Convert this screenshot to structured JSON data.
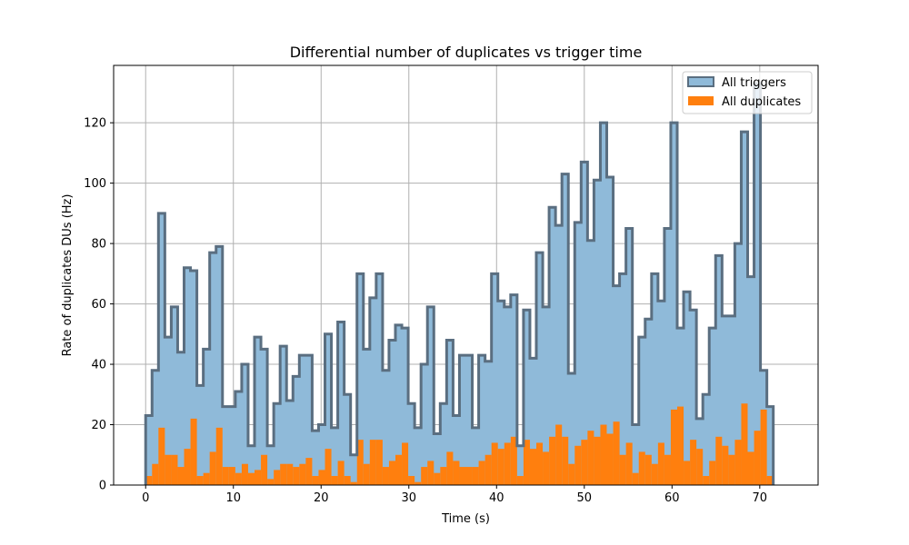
{
  "chart_data": {
    "type": "histogram",
    "title": "Differential number of duplicates vs trigger time",
    "xlabel": "Time (s)",
    "ylabel": "Rate of duplicates DUs (Hz)",
    "xlim": [
      -3.65,
      76.65
    ],
    "ylim": [
      0,
      139
    ],
    "xticks": [
      0,
      10,
      20,
      30,
      40,
      50,
      60,
      70
    ],
    "yticks": [
      0,
      20,
      40,
      60,
      80,
      100,
      120
    ],
    "grid": true,
    "legend_position": "top-right",
    "bin_start": 0,
    "bin_width": 0.73,
    "series": [
      {
        "name": "All triggers",
        "style": "stepfilled",
        "fill_color": "#8fbad9",
        "edge_color": "#5a6e80",
        "values": [
          23,
          38,
          90,
          49,
          59,
          44,
          72,
          71,
          33,
          45,
          77,
          79,
          26,
          26,
          31,
          40,
          13,
          49,
          45,
          13,
          27,
          46,
          28,
          36,
          43,
          43,
          18,
          20,
          50,
          19,
          54,
          30,
          10,
          70,
          45,
          62,
          70,
          38,
          48,
          53,
          52,
          27,
          19,
          40,
          59,
          17,
          27,
          48,
          23,
          43,
          43,
          19,
          43,
          41,
          70,
          61,
          59,
          63,
          13,
          58,
          42,
          77,
          59,
          92,
          86,
          103,
          37,
          87,
          107,
          81,
          101,
          120,
          102,
          66,
          70,
          85,
          20,
          49,
          55,
          70,
          61,
          85,
          120,
          52,
          64,
          58,
          22,
          30,
          52,
          76,
          56,
          56,
          80,
          117,
          69,
          133,
          38,
          26
        ]
      },
      {
        "name": "All duplicates",
        "style": "bar",
        "fill_color": "#ff7f0e",
        "values": [
          3,
          7,
          19,
          10,
          10,
          6,
          12,
          22,
          3,
          4,
          11,
          19,
          6,
          6,
          4,
          7,
          4,
          5,
          10,
          2,
          5,
          7,
          7,
          6,
          7,
          9,
          3,
          5,
          12,
          3,
          8,
          3,
          1,
          15,
          7,
          15,
          15,
          6,
          8,
          10,
          14,
          3,
          1,
          6,
          8,
          4,
          6,
          11,
          8,
          6,
          6,
          6,
          8,
          10,
          14,
          12,
          14,
          16,
          3,
          15,
          12,
          14,
          11,
          16,
          20,
          16,
          7,
          13,
          15,
          18,
          16,
          20,
          17,
          21,
          10,
          14,
          4,
          11,
          10,
          7,
          14,
          10,
          25,
          26,
          8,
          15,
          12,
          3,
          8,
          16,
          13,
          10,
          15,
          27,
          11,
          18,
          25,
          3
        ]
      }
    ]
  }
}
